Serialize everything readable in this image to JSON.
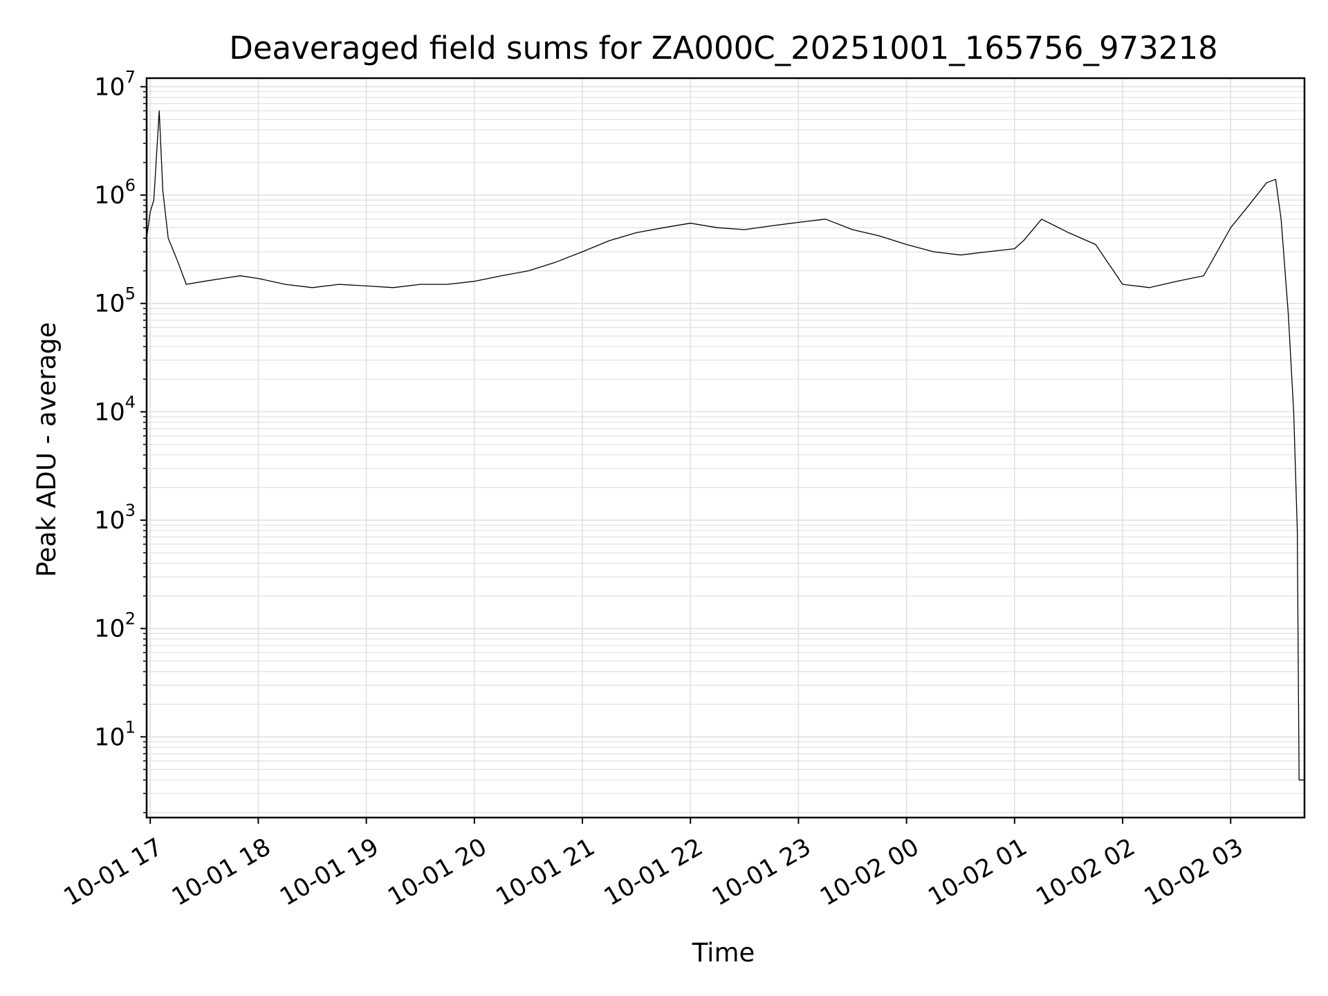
{
  "chart_data": {
    "type": "line",
    "title": "Deaveraged field sums for ZA000C_20251001_165756_973218",
    "xlabel": "Time",
    "ylabel": "Peak ADU - average",
    "yscale": "log",
    "ylim": [
      1.8,
      12000000
    ],
    "xlim": [
      "10-01 16:58",
      "10-02 03:41"
    ],
    "grid": true,
    "line_color": "#000000",
    "grid_color": "#e0e0e0",
    "x_ticks": [
      {
        "value": "10-01 17:00",
        "label": "10-01 17"
      },
      {
        "value": "10-01 18:00",
        "label": "10-01 18"
      },
      {
        "value": "10-01 19:00",
        "label": "10-01 19"
      },
      {
        "value": "10-01 20:00",
        "label": "10-01 20"
      },
      {
        "value": "10-01 21:00",
        "label": "10-01 21"
      },
      {
        "value": "10-01 22:00",
        "label": "10-01 22"
      },
      {
        "value": "10-01 23:00",
        "label": "10-01 23"
      },
      {
        "value": "10-02 00:00",
        "label": "10-02 00"
      },
      {
        "value": "10-02 01:00",
        "label": "10-02 01"
      },
      {
        "value": "10-02 02:00",
        "label": "10-02 02"
      },
      {
        "value": "10-02 03:00",
        "label": "10-02 03"
      }
    ],
    "y_ticks": [
      {
        "value": 10,
        "base": "10",
        "exp": "1"
      },
      {
        "value": 100,
        "base": "10",
        "exp": "2"
      },
      {
        "value": 1000,
        "base": "10",
        "exp": "3"
      },
      {
        "value": 10000,
        "base": "10",
        "exp": "4"
      },
      {
        "value": 100000,
        "base": "10",
        "exp": "5"
      },
      {
        "value": 1000000,
        "base": "10",
        "exp": "6"
      },
      {
        "value": 10000000,
        "base": "10",
        "exp": "7"
      }
    ],
    "series": [
      {
        "x": [
          "10-01 16:58",
          "10-01 17:00",
          "10-01 17:02",
          "10-01 17:05",
          "10-01 17:07",
          "10-01 17:10",
          "10-01 17:15",
          "10-01 17:20",
          "10-01 17:30",
          "10-01 17:40",
          "10-01 17:50",
          "10-01 18:00",
          "10-01 18:15",
          "10-01 18:30",
          "10-01 18:45",
          "10-01 19:00",
          "10-01 19:15",
          "10-01 19:30",
          "10-01 19:45",
          "10-01 20:00",
          "10-01 20:15",
          "10-01 20:30",
          "10-01 20:45",
          "10-01 21:00",
          "10-01 21:15",
          "10-01 21:30",
          "10-01 21:45",
          "10-01 22:00",
          "10-01 22:15",
          "10-01 22:30",
          "10-01 22:45",
          "10-01 23:00",
          "10-01 23:15",
          "10-01 23:30",
          "10-01 23:45",
          "10-02 00:00",
          "10-02 00:15",
          "10-02 00:30",
          "10-02 00:45",
          "10-02 01:00",
          "10-02 01:05",
          "10-02 01:15",
          "10-02 01:30",
          "10-02 01:45",
          "10-02 02:00",
          "10-02 02:15",
          "10-02 02:30",
          "10-02 02:45",
          "10-02 03:00",
          "10-02 03:10",
          "10-02 03:20",
          "10-02 03:25",
          "10-02 03:28",
          "10-02 03:32",
          "10-02 03:35",
          "10-02 03:37",
          "10-02 03:38",
          "10-02 03:41"
        ],
        "y": [
          400000,
          700000,
          900000,
          6000000,
          1100000,
          400000,
          250000,
          150000,
          160000,
          170000,
          180000,
          170000,
          150000,
          140000,
          150000,
          145000,
          140000,
          150000,
          150000,
          160000,
          180000,
          200000,
          240000,
          300000,
          380000,
          450000,
          500000,
          550000,
          500000,
          480000,
          520000,
          560000,
          600000,
          480000,
          420000,
          350000,
          300000,
          280000,
          300000,
          320000,
          380000,
          600000,
          450000,
          350000,
          150000,
          140000,
          160000,
          180000,
          500000,
          800000,
          1300000,
          1400000,
          600000,
          80000,
          10000,
          800,
          4,
          4
        ]
      }
    ]
  }
}
